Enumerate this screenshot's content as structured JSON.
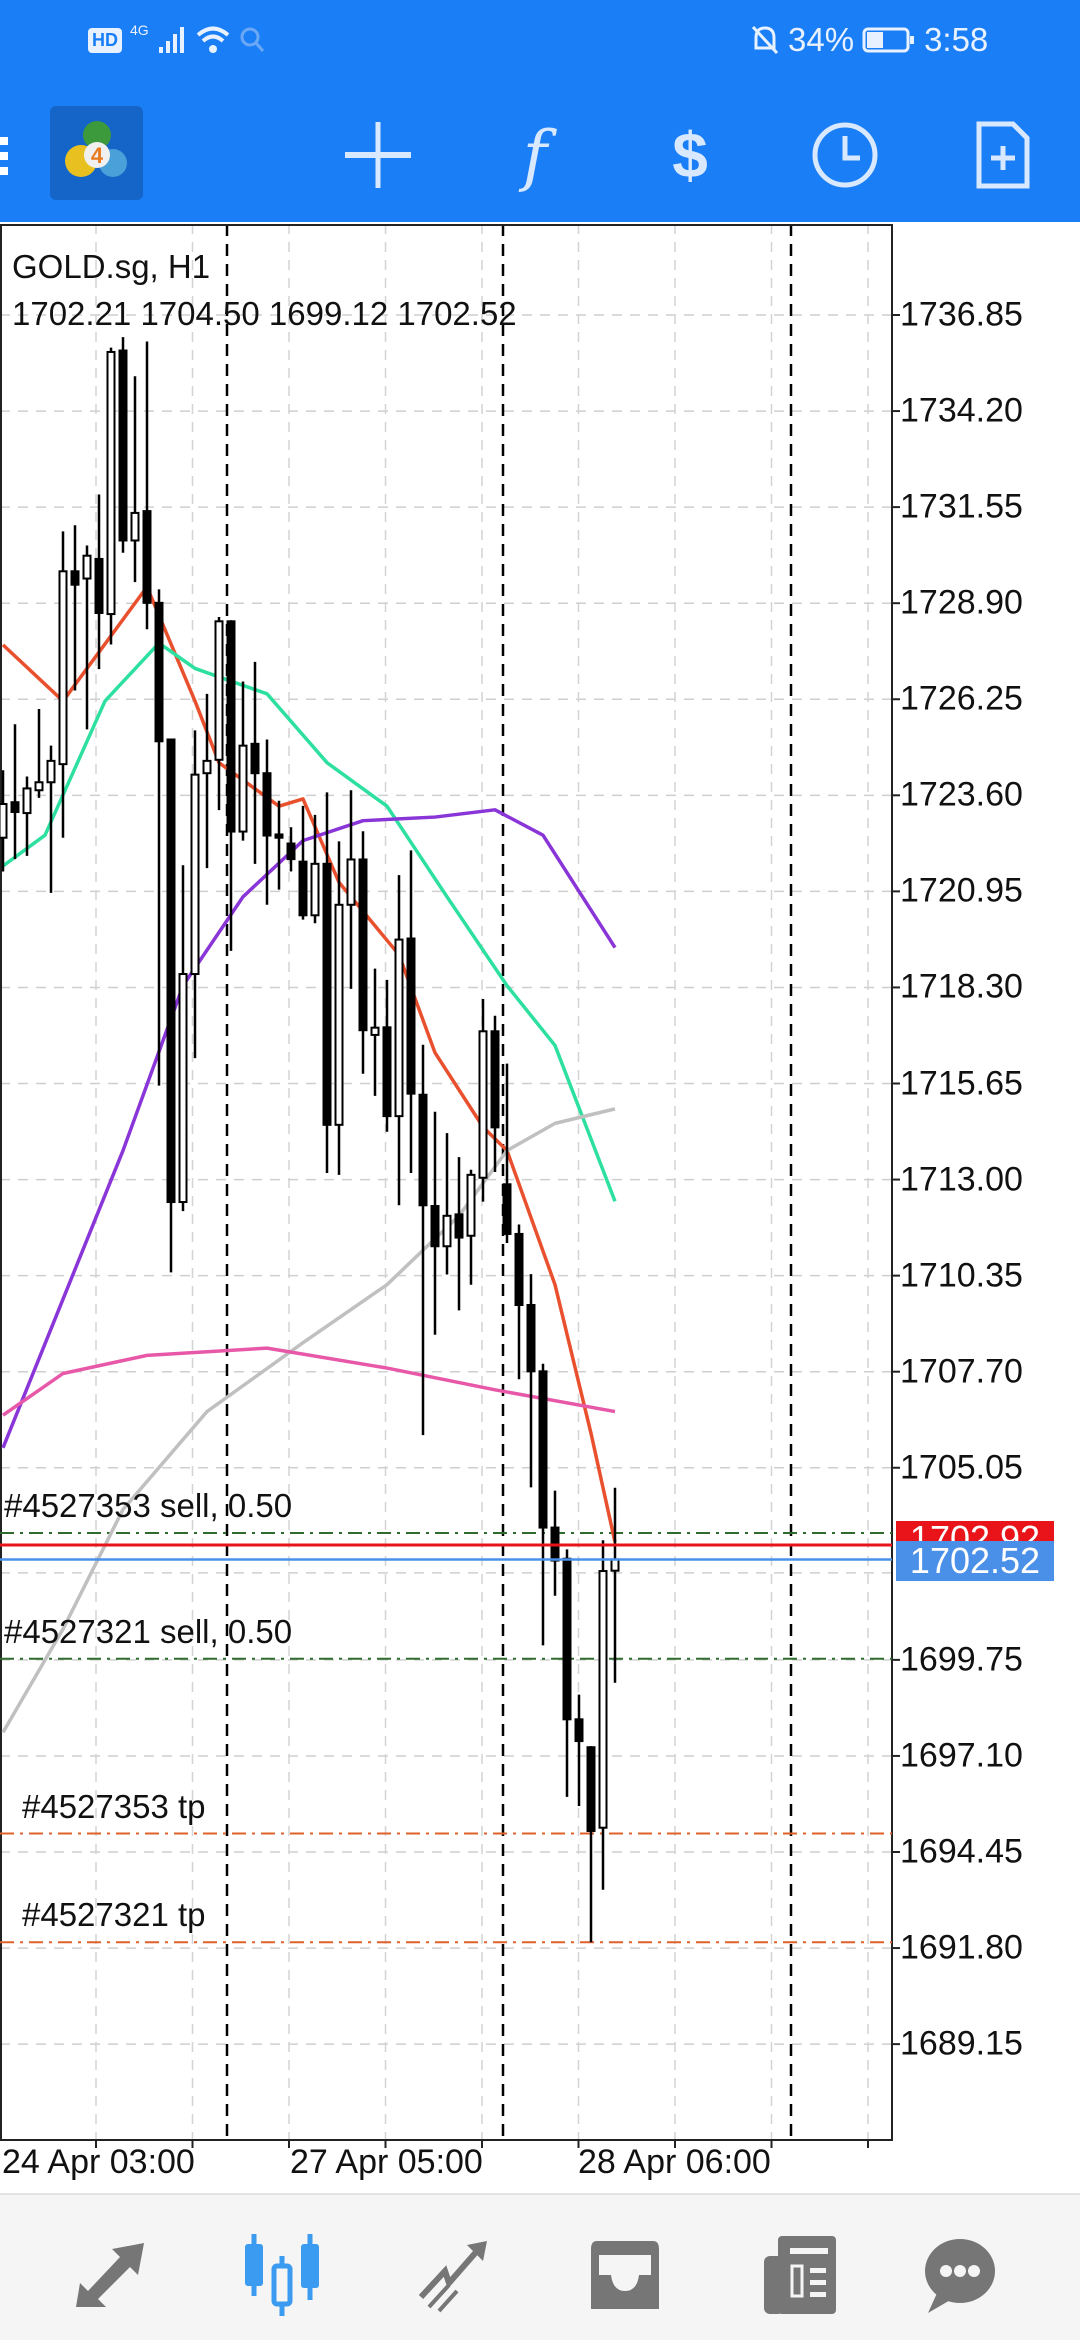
{
  "status_bar": {
    "left_icons": [
      "hd-icon",
      "4g-signal-icon",
      "wifi-icon",
      "search-icon"
    ],
    "network": "4G",
    "battery": "34%",
    "time": "3:58"
  },
  "toolbar": {
    "icons": [
      "menu-icon",
      "metatrader4-logo",
      "crosshair-icon",
      "indicators-icon",
      "trade-icon",
      "timeframe-clock-icon",
      "new-order-icon"
    ],
    "logo_text": "4",
    "f_glyph": "f",
    "dollar_glyph": "$"
  },
  "chart": {
    "symbol": "GOLD.sg, H1",
    "ohlc": "1702.21 1704.50 1699.12 1702.52",
    "price_ticks": [
      "1736.85",
      "1734.20",
      "1731.55",
      "1728.90",
      "1726.25",
      "1723.60",
      "1720.95",
      "1718.30",
      "1715.65",
      "1713.00",
      "1710.35",
      "1707.70",
      "1705.05",
      "1699.75",
      "1697.10",
      "1694.45",
      "1691.80",
      "1689.15"
    ],
    "time_labels": [
      "24 Apr 03:00",
      "27 Apr 05:00",
      "28 Apr 06:00"
    ],
    "ask_price": "1702.92",
    "bid_price": "1702.52",
    "colors": {
      "ask": "#e8141a",
      "bid": "#4a90e8",
      "bull": "#ffffff",
      "bear": "#000000",
      "trade": "#2f6b2f",
      "tp": "#e0602a"
    },
    "trades": [
      {
        "label": "#4527353 sell, 0.50",
        "price": 1703.25,
        "type": "entry"
      },
      {
        "label": "#4527321 sell, 0.50",
        "price": 1699.78,
        "type": "entry"
      },
      {
        "label": "#4527353 tp",
        "price": 1694.96,
        "type": "tp"
      },
      {
        "label": "#4527321 tp",
        "price": 1691.96,
        "type": "tp"
      }
    ]
  },
  "chart_data": {
    "type": "candlestick",
    "candles_ohlc": [
      [
        1722.43,
        1724.29,
        1721.5,
        1723.36
      ],
      [
        1723.41,
        1725.56,
        1721.84,
        1723.14
      ],
      [
        1723.11,
        1724.12,
        1721.93,
        1723.79
      ],
      [
        1723.74,
        1725.98,
        1723.53,
        1723.96
      ],
      [
        1723.96,
        1724.97,
        1720.91,
        1724.55
      ],
      [
        1724.46,
        1730.88,
        1722.43,
        1729.78
      ],
      [
        1729.78,
        1731.05,
        1726.49,
        1729.41
      ],
      [
        1729.58,
        1730.49,
        1725.42,
        1730.21
      ],
      [
        1730.12,
        1731.9,
        1727.08,
        1728.63
      ],
      [
        1728.6,
        1735.95,
        1727.76,
        1735.83
      ],
      [
        1735.87,
        1736.24,
        1730.29,
        1730.63
      ],
      [
        1730.63,
        1735.16,
        1729.48,
        1731.39
      ],
      [
        1731.44,
        1736.12,
        1728.18,
        1728.91
      ],
      [
        1728.91,
        1729.28,
        1715.59,
        1725.09
      ],
      [
        1725.14,
        1725.14,
        1710.44,
        1712.38
      ],
      [
        1712.38,
        1721.67,
        1712.13,
        1718.67
      ],
      [
        1718.67,
        1725.39,
        1716.35,
        1724.17
      ],
      [
        1724.21,
        1726.4,
        1721.59,
        1724.55
      ],
      [
        1724.58,
        1728.52,
        1723.19,
        1728.4
      ],
      [
        1728.4,
        1728.43,
        1719.31,
        1722.6
      ],
      [
        1722.6,
        1726.74,
        1722.35,
        1724.97
      ],
      [
        1725.02,
        1727.28,
        1721.71,
        1724.21
      ],
      [
        1724.21,
        1725.14,
        1720.58,
        1722.49
      ],
      [
        1722.52,
        1723.45,
        1721.0,
        1722.43
      ],
      [
        1722.27,
        1722.72,
        1721.5,
        1721.84
      ],
      [
        1721.77,
        1723.31,
        1720.17,
        1720.29
      ],
      [
        1720.29,
        1723.06,
        1720.07,
        1721.71
      ],
      [
        1721.71,
        1723.68,
        1713.18,
        1714.51
      ],
      [
        1714.51,
        1722.33,
        1713.13,
        1720.58
      ],
      [
        1720.58,
        1723.74,
        1718.26,
        1721.83
      ],
      [
        1721.83,
        1722.61,
        1715.92,
        1717.12
      ],
      [
        1716.99,
        1718.82,
        1715.31,
        1717.19
      ],
      [
        1717.2,
        1718.51,
        1714.32,
        1714.75
      ],
      [
        1714.75,
        1721.4,
        1712.29,
        1719.62
      ],
      [
        1719.65,
        1722.08,
        1713.18,
        1715.37
      ],
      [
        1715.34,
        1716.72,
        1705.95,
        1712.29
      ],
      [
        1712.27,
        1714.87,
        1708.72,
        1711.16
      ],
      [
        1711.16,
        1714.28,
        1710.38,
        1712.0
      ],
      [
        1712.04,
        1713.62,
        1709.39,
        1711.4
      ],
      [
        1711.45,
        1713.27,
        1710.1,
        1713.13
      ],
      [
        1713.05,
        1717.98,
        1712.39,
        1717.09
      ],
      [
        1717.09,
        1717.52,
        1713.21,
        1714.44
      ],
      [
        1712.87,
        1716.2,
        1711.25,
        1711.5
      ],
      [
        1711.5,
        1711.76,
        1707.49,
        1709.54
      ],
      [
        1709.54,
        1710.39,
        1704.51,
        1707.71
      ],
      [
        1707.71,
        1707.92,
        1700.15,
        1703.4
      ],
      [
        1703.4,
        1704.42,
        1701.52,
        1702.49
      ],
      [
        1702.54,
        1702.8,
        1695.97,
        1698.11
      ],
      [
        1698.11,
        1698.79,
        1695.72,
        1697.51
      ],
      [
        1697.34,
        1697.37,
        1691.96,
        1695.03
      ],
      [
        1695.12,
        1703.05,
        1693.41,
        1702.2
      ],
      [
        1702.21,
        1704.5,
        1699.12,
        1702.52
      ]
    ],
    "moving_averages": [
      {
        "color": "#e8502e",
        "points": [
          [
            0,
            1727.75
          ],
          [
            5,
            1726.2
          ],
          [
            12,
            1729.35
          ],
          [
            16,
            1726.2
          ],
          [
            18,
            1724.5
          ],
          [
            23,
            1723.3
          ],
          [
            25,
            1723.5
          ],
          [
            28,
            1721.2
          ],
          [
            33,
            1719.2
          ],
          [
            36,
            1716.5
          ],
          [
            40,
            1714.45
          ],
          [
            42,
            1713.8
          ],
          [
            46,
            1710.1
          ],
          [
            49,
            1706.0
          ],
          [
            51,
            1703.0
          ]
        ]
      },
      {
        "color": "#2ee0a0",
        "points": [
          [
            0,
            1721.65
          ],
          [
            3.5,
            1722.5
          ],
          [
            8.5,
            1726.2
          ],
          [
            13,
            1727.8
          ],
          [
            16,
            1727.1
          ],
          [
            22,
            1726.4
          ],
          [
            27,
            1724.5
          ],
          [
            32,
            1723.3
          ],
          [
            37,
            1720.8
          ],
          [
            42,
            1718.35
          ],
          [
            46,
            1716.7
          ],
          [
            51,
            1712.4
          ]
        ]
      },
      {
        "color": "#8a35d8",
        "points": [
          [
            0,
            1705.6
          ],
          [
            5,
            1709.7
          ],
          [
            10,
            1713.8
          ],
          [
            15,
            1718.35
          ],
          [
            20,
            1720.8
          ],
          [
            25,
            1722.35
          ],
          [
            30,
            1722.9
          ],
          [
            36,
            1723.0
          ],
          [
            41,
            1723.2
          ],
          [
            45,
            1722.5
          ],
          [
            51,
            1719.4
          ]
        ]
      },
      {
        "color": "#c0c0c0",
        "points": [
          [
            0,
            1697.75
          ],
          [
            5,
            1700.6
          ],
          [
            10,
            1703.9
          ],
          [
            17,
            1706.6
          ],
          [
            25,
            1708.5
          ],
          [
            32,
            1710.1
          ],
          [
            38,
            1712.0
          ],
          [
            42,
            1713.8
          ],
          [
            46,
            1714.55
          ],
          [
            51,
            1714.95
          ]
        ]
      },
      {
        "color": "#e858a8",
        "points": [
          [
            0,
            1706.5
          ],
          [
            5,
            1707.65
          ],
          [
            12,
            1708.15
          ],
          [
            22,
            1708.35
          ],
          [
            32,
            1707.8
          ],
          [
            41,
            1707.2
          ],
          [
            51,
            1706.6
          ]
        ]
      }
    ],
    "ylim": [
      1687.5,
      1739.4
    ]
  },
  "bottom_nav": {
    "items": [
      "quotes-icon",
      "chart-icon",
      "trade-icon",
      "history-icon",
      "news-icon",
      "messages-icon"
    ],
    "active": 1,
    "active_color": "#3a9bf0",
    "inactive_color": "#767676"
  }
}
